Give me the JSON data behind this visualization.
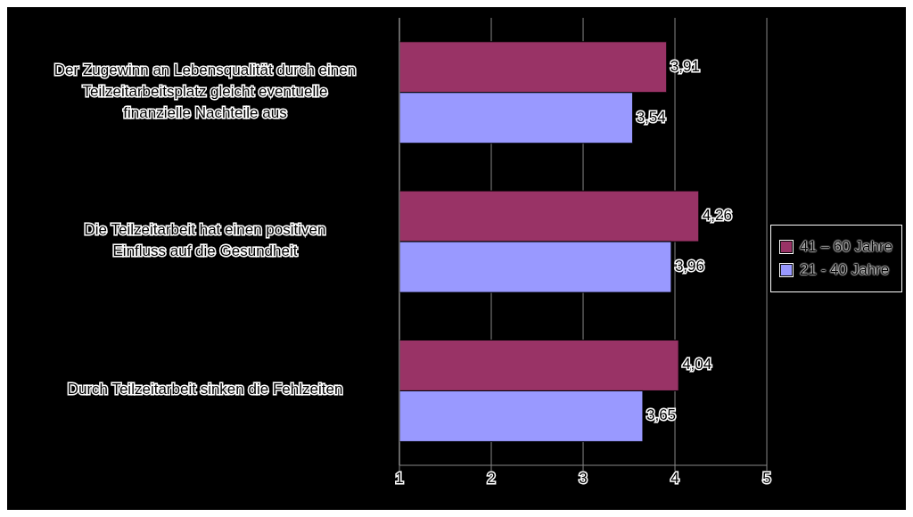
{
  "chart_data": {
    "type": "bar",
    "orientation": "horizontal",
    "categories": [
      "Der Zugewinn an Lebensqualität durch einen Teilzeitarbeitsplatz gleicht eventuelle finanzielle Nachteile aus",
      "Die Teilzeitarbeit hat einen positiven Einfluss auf die Gesundheit",
      "Durch Teilzeitarbeit sinken die Fehlzeiten"
    ],
    "series": [
      {
        "name": "41 – 60 Jahre",
        "color": "#993366",
        "values": [
          3.91,
          4.26,
          4.04
        ],
        "value_labels": [
          "3,91",
          "4,26",
          "4,04"
        ]
      },
      {
        "name": "21 - 40 Jahre",
        "color": "#9999ff",
        "values": [
          3.54,
          3.96,
          3.65
        ],
        "value_labels": [
          "3,54",
          "3,96",
          "3,65"
        ]
      }
    ],
    "xlim": [
      1,
      5
    ],
    "xticks": [
      1,
      2,
      3,
      4,
      5
    ],
    "grid": "x",
    "legend": "right"
  }
}
